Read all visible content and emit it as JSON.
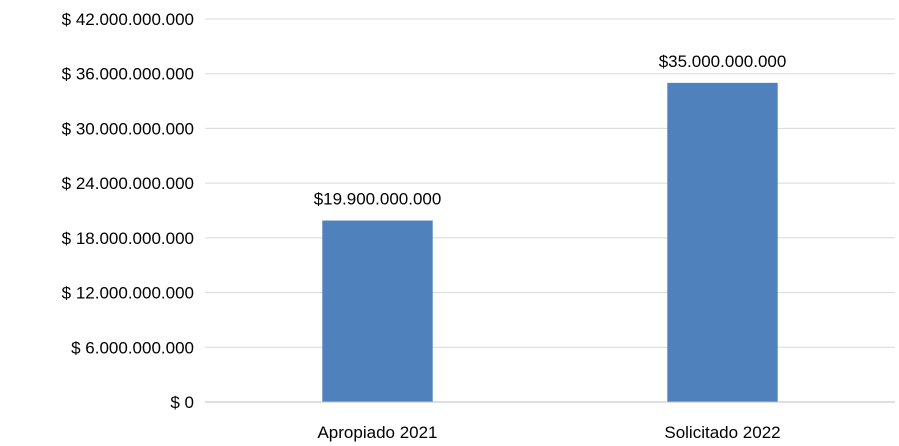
{
  "chart_data": {
    "type": "bar",
    "categories": [
      "Apropiado 2021",
      "Solicitado 2022"
    ],
    "values": [
      19900000000,
      35000000000
    ],
    "data_labels": [
      "$19.900.000.000",
      "$35.000.000.000"
    ],
    "ylim": [
      0,
      42000000000
    ],
    "y_ticks": [
      0,
      6000000000,
      12000000000,
      18000000000,
      24000000000,
      30000000000,
      36000000000,
      42000000000
    ],
    "y_tick_labels": [
      "$ 0",
      "$ 6.000.000.000",
      "$ 12.000.000.000",
      "$ 18.000.000.000",
      "$ 24.000.000.000",
      "$ 30.000.000.000",
      "$ 36.000.000.000",
      "$ 42.000.000.000"
    ],
    "grid": true,
    "legend": "none",
    "bar_color": "#4f81bd",
    "grid_color": "#d9d9d9",
    "axis_color": "#bfbfbf"
  }
}
